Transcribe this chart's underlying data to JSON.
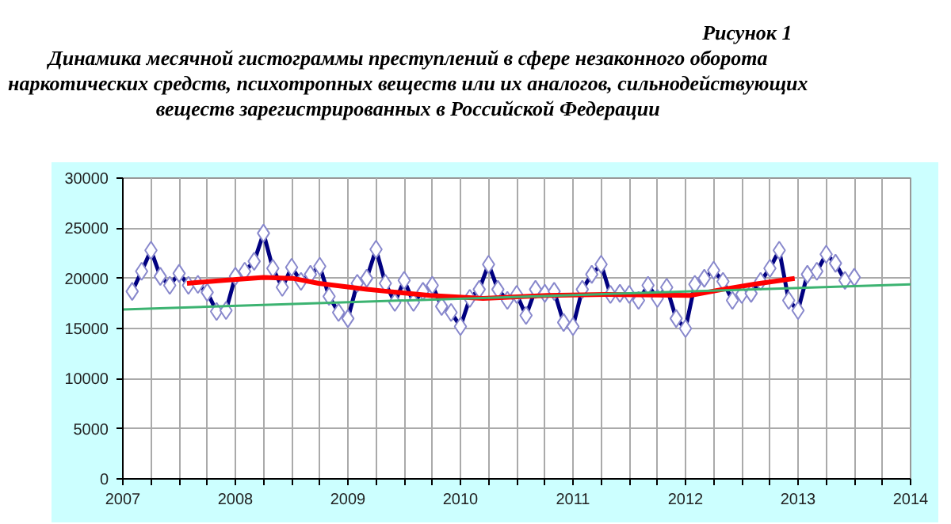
{
  "chart_data": {
    "type": "line",
    "title": "Динамика месячной гистограммы преступлений в сфере незаконного оборота\nнаркотических средств, психотропных веществ или их аналогов, сильнодействующих\nвеществ зарегистрированных в Российской Федерации",
    "annotations": [
      "Рисунок 1"
    ],
    "xlim": [
      2007,
      2014
    ],
    "ylim": [
      0,
      30000
    ],
    "xticks": [
      2007,
      {
        "value": 2007.25,
        "label": null
      },
      {
        "value": 2007.5,
        "label": null
      },
      {
        "value": 2007.75,
        "label": null
      },
      2008,
      {
        "value": 2008.25,
        "label": null
      },
      {
        "value": 2008.5,
        "label": null
      },
      {
        "value": 2008.75,
        "label": null
      },
      2009,
      {
        "value": 2009.25,
        "label": null
      },
      {
        "value": 2009.5,
        "label": null
      },
      {
        "value": 2009.75,
        "label": null
      },
      2010,
      {
        "value": 2010.25,
        "label": null
      },
      {
        "value": 2010.5,
        "label": null
      },
      {
        "value": 2010.75,
        "label": null
      },
      2011,
      {
        "value": 2011.25,
        "label": null
      },
      {
        "value": 2011.5,
        "label": null
      },
      {
        "value": 2011.75,
        "label": null
      },
      2012,
      {
        "value": 2012.25,
        "label": null
      },
      {
        "value": 2012.5,
        "label": null
      },
      {
        "value": 2012.75,
        "label": null
      },
      2013,
      {
        "value": 2013.25,
        "label": null
      },
      {
        "value": 2013.5,
        "label": null
      },
      {
        "value": 2013.75,
        "label": null
      },
      2014
    ],
    "yticks": [
      0,
      5000,
      10000,
      15000,
      20000,
      25000,
      30000
    ],
    "grid": true,
    "series": [
      {
        "color": "#000080",
        "marker": "diamond",
        "x": [
          2007.083,
          2007.167,
          2007.25,
          2007.333,
          2007.417,
          2007.5,
          2007.583,
          2007.667,
          2007.75,
          2007.833,
          2007.917,
          2008.0,
          2008.083,
          2008.167,
          2008.25,
          2008.333,
          2008.417,
          2008.5,
          2008.583,
          2008.667,
          2008.75,
          2008.833,
          2008.917,
          2009.0,
          2009.083,
          2009.167,
          2009.25,
          2009.333,
          2009.417,
          2009.5,
          2009.583,
          2009.667,
          2009.75,
          2009.833,
          2009.917,
          2010.0,
          2010.083,
          2010.167,
          2010.25,
          2010.333,
          2010.417,
          2010.5,
          2010.583,
          2010.667,
          2010.75,
          2010.833,
          2010.917,
          2011.0,
          2011.083,
          2011.167,
          2011.25,
          2011.333,
          2011.417,
          2011.5,
          2011.583,
          2011.667,
          2011.75,
          2011.833,
          2011.917,
          2012.0,
          2012.083,
          2012.167,
          2012.25,
          2012.333,
          2012.417,
          2012.5,
          2012.583,
          2012.667,
          2012.75,
          2012.833,
          2012.917,
          2013.0,
          2013.083,
          2013.167,
          2013.25,
          2013.333,
          2013.417,
          2013.5
        ],
        "values": [
          18700,
          20700,
          22800,
          20200,
          19300,
          20500,
          19300,
          19400,
          18600,
          16700,
          16800,
          20200,
          20700,
          21700,
          24500,
          21000,
          19100,
          21100,
          19700,
          20400,
          21200,
          18200,
          16600,
          16000,
          19500,
          20000,
          22900,
          19500,
          17600,
          19800,
          17600,
          18700,
          19300,
          17200,
          16600,
          15200,
          18000,
          18900,
          21400,
          18900,
          17800,
          18400,
          16300,
          18900,
          18500,
          18700,
          15600,
          15200,
          18900,
          20400,
          21400,
          18400,
          18500,
          18400,
          17800,
          19300,
          18000,
          19100,
          16000,
          15000,
          19400,
          20000,
          20800,
          19700,
          17800,
          18400,
          18500,
          19700,
          21000,
          22800,
          17800,
          16800,
          20400,
          20700,
          22400,
          21500,
          19800,
          20100
        ]
      },
      {
        "color": "#ff0000",
        "marker": "none",
        "x": [
          2007.57,
          2007.89,
          2008.25,
          2008.51,
          2008.74,
          2009.17,
          2009.35,
          2009.73,
          2010.2,
          2010.77,
          2011.29,
          2012.04,
          2012.33,
          2012.6,
          2012.97
        ],
        "values": [
          19500,
          19800,
          20100,
          20000,
          19500,
          18900,
          18700,
          18300,
          18000,
          18300,
          18400,
          18300,
          18900,
          19400,
          20000
        ]
      },
      {
        "color": "#3cb371",
        "marker": "none",
        "x": [
          2007,
          2014
        ],
        "values": [
          16900,
          19400
        ]
      }
    ]
  }
}
